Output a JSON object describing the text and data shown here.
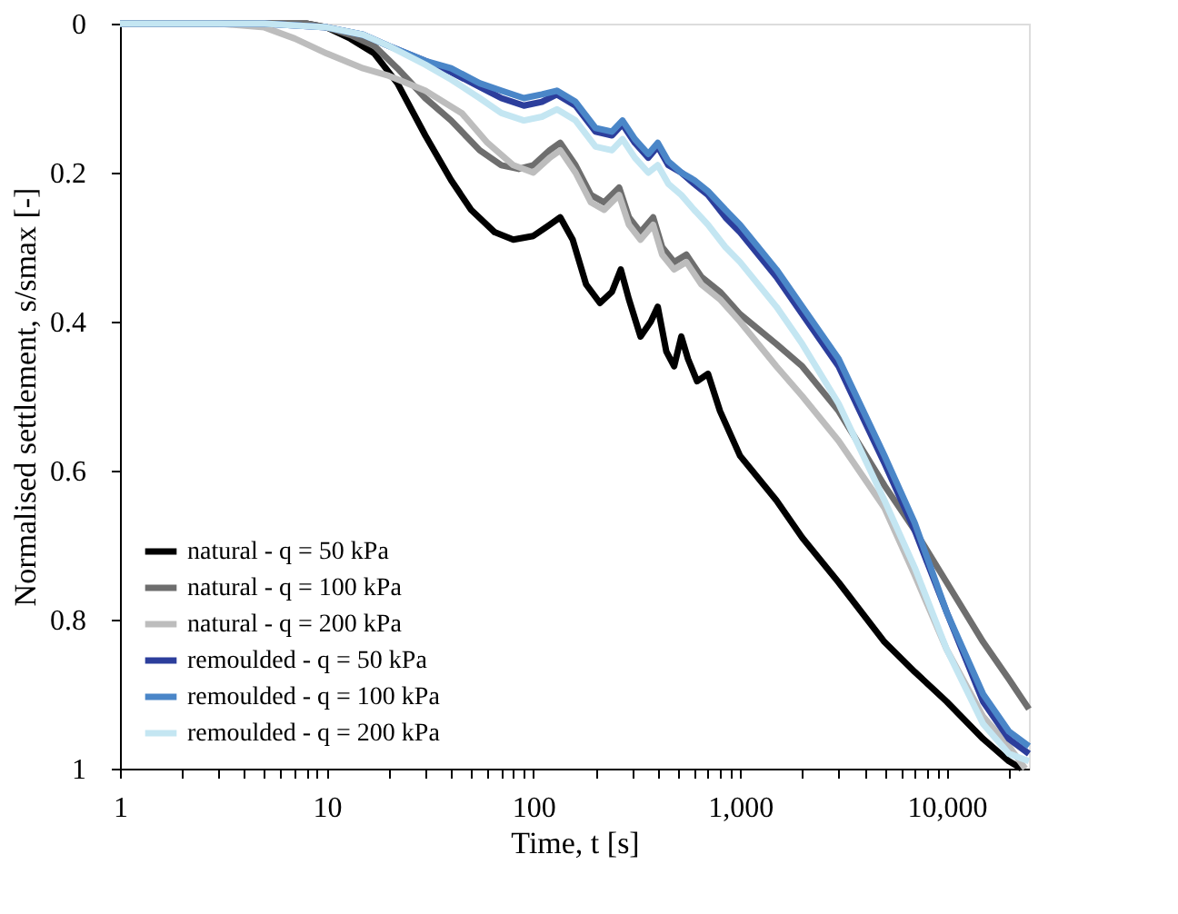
{
  "chart_data": {
    "type": "line",
    "xlabel": "Time, t [s]",
    "ylabel": "Normalised settlement, s/smax [-]",
    "log": "x",
    "grid": false,
    "legend": "bottom left",
    "marker": "none",
    "line_style": "solid",
    "xlim": [
      1,
      25000
    ],
    "xticks": [
      1,
      {
        "value": 2,
        "label": null
      },
      {
        "value": 3,
        "label": null
      },
      {
        "value": 4,
        "label": null
      },
      {
        "value": 5,
        "label": null
      },
      {
        "value": 6,
        "label": null
      },
      {
        "value": 7,
        "label": null
      },
      {
        "value": 8,
        "label": null
      },
      {
        "value": 9,
        "label": null
      },
      10,
      {
        "value": 20,
        "label": null
      },
      {
        "value": 30,
        "label": null
      },
      {
        "value": 40,
        "label": null
      },
      {
        "value": 50,
        "label": null
      },
      {
        "value": 60,
        "label": null
      },
      {
        "value": 70,
        "label": null
      },
      {
        "value": 80,
        "label": null
      },
      {
        "value": 90,
        "label": null
      },
      100,
      {
        "value": 200,
        "label": null
      },
      {
        "value": 300,
        "label": null
      },
      {
        "value": 400,
        "label": null
      },
      {
        "value": 500,
        "label": null
      },
      {
        "value": 600,
        "label": null
      },
      {
        "value": 700,
        "label": null
      },
      {
        "value": 800,
        "label": null
      },
      {
        "value": 900,
        "label": null
      },
      {
        "value": 1000,
        "label": "1,000"
      },
      {
        "value": 2000,
        "label": null
      },
      {
        "value": 3000,
        "label": null
      },
      {
        "value": 4000,
        "label": null
      },
      {
        "value": 5000,
        "label": null
      },
      {
        "value": 6000,
        "label": null
      },
      {
        "value": 7000,
        "label": null
      },
      {
        "value": 8000,
        "label": null
      },
      {
        "value": 9000,
        "label": null
      },
      {
        "value": 10000,
        "label": "10,000"
      },
      {
        "value": 20000,
        "label": null
      }
    ],
    "ylim": [
      1,
      0
    ],
    "yticks": [
      0,
      0.2,
      0.4,
      0.6,
      0.8,
      1
    ],
    "series": [
      {
        "name": "natural - q = 50 kPa",
        "color": "#000000",
        "x": [
          1,
          3,
          6,
          8,
          10,
          13,
          17,
          22,
          30,
          40,
          50,
          65,
          80,
          100,
          120,
          135,
          155,
          180,
          210,
          240,
          265,
          290,
          330,
          370,
          400,
          440,
          480,
          520,
          560,
          620,
          700,
          800,
          1000,
          1500,
          2000,
          3000,
          5000,
          7000,
          10000,
          15000,
          20000,
          23000
        ],
        "values": [
          0,
          0,
          0,
          0,
          0.005,
          0.02,
          0.04,
          0.08,
          0.15,
          0.21,
          0.25,
          0.28,
          0.29,
          0.285,
          0.27,
          0.26,
          0.29,
          0.35,
          0.375,
          0.36,
          0.33,
          0.37,
          0.42,
          0.4,
          0.38,
          0.44,
          0.46,
          0.42,
          0.45,
          0.48,
          0.47,
          0.52,
          0.58,
          0.64,
          0.69,
          0.75,
          0.83,
          0.87,
          0.91,
          0.96,
          0.99,
          1
        ]
      },
      {
        "name": "natural - q = 100 kPa",
        "color": "#6e6e6e",
        "x": [
          1,
          5,
          8,
          10,
          13,
          17,
          22,
          30,
          40,
          55,
          70,
          85,
          100,
          120,
          135,
          160,
          190,
          220,
          260,
          290,
          330,
          380,
          420,
          480,
          550,
          650,
          800,
          1000,
          1500,
          2000,
          3000,
          5000,
          7000,
          10000,
          15000,
          20000,
          25000
        ],
        "values": [
          0,
          0,
          0,
          0.005,
          0.015,
          0.03,
          0.06,
          0.1,
          0.13,
          0.17,
          0.19,
          0.195,
          0.19,
          0.17,
          0.16,
          0.19,
          0.23,
          0.24,
          0.22,
          0.26,
          0.28,
          0.26,
          0.3,
          0.32,
          0.31,
          0.34,
          0.36,
          0.39,
          0.43,
          0.46,
          0.52,
          0.62,
          0.68,
          0.75,
          0.83,
          0.88,
          0.92
        ]
      },
      {
        "name": "natural - q = 200 kPa",
        "color": "#bdbdbd",
        "x": [
          1,
          3,
          5,
          7,
          10,
          15,
          20,
          30,
          45,
          60,
          80,
          100,
          120,
          135,
          160,
          190,
          220,
          260,
          290,
          330,
          380,
          420,
          480,
          550,
          650,
          800,
          1000,
          1500,
          2000,
          3000,
          5000,
          7000,
          10000,
          15000,
          20000,
          24000
        ],
        "values": [
          0,
          0,
          0.005,
          0.02,
          0.04,
          0.06,
          0.07,
          0.09,
          0.12,
          0.16,
          0.19,
          0.2,
          0.18,
          0.17,
          0.2,
          0.24,
          0.25,
          0.23,
          0.27,
          0.29,
          0.27,
          0.31,
          0.33,
          0.32,
          0.35,
          0.37,
          0.4,
          0.46,
          0.5,
          0.56,
          0.65,
          0.74,
          0.84,
          0.93,
          0.97,
          1
        ]
      },
      {
        "name": "remoulded - q = 50 kPa",
        "color": "#2c3e9c",
        "x": [
          1,
          5,
          10,
          15,
          20,
          30,
          40,
          55,
          70,
          90,
          110,
          130,
          160,
          200,
          240,
          270,
          310,
          360,
          400,
          450,
          520,
          600,
          700,
          850,
          1000,
          1500,
          2000,
          3000,
          5000,
          7000,
          10000,
          15000,
          20000,
          25000
        ],
        "values": [
          0,
          0,
          0.005,
          0.015,
          0.03,
          0.05,
          0.065,
          0.085,
          0.1,
          0.11,
          0.105,
          0.095,
          0.11,
          0.145,
          0.15,
          0.135,
          0.16,
          0.18,
          0.165,
          0.19,
          0.2,
          0.215,
          0.23,
          0.26,
          0.28,
          0.34,
          0.39,
          0.46,
          0.59,
          0.68,
          0.79,
          0.91,
          0.96,
          0.98
        ]
      },
      {
        "name": "remoulded - q = 100 kPa",
        "color": "#4a86c8",
        "x": [
          1,
          5,
          10,
          15,
          20,
          30,
          40,
          55,
          70,
          90,
          110,
          130,
          160,
          200,
          240,
          270,
          310,
          360,
          400,
          450,
          520,
          600,
          700,
          850,
          1000,
          1500,
          2000,
          3000,
          5000,
          7000,
          10000,
          15000,
          20000,
          25000
        ],
        "values": [
          0,
          0,
          0.005,
          0.015,
          0.03,
          0.05,
          0.06,
          0.08,
          0.09,
          0.1,
          0.095,
          0.09,
          0.105,
          0.14,
          0.145,
          0.13,
          0.155,
          0.175,
          0.16,
          0.185,
          0.2,
          0.21,
          0.225,
          0.25,
          0.27,
          0.33,
          0.38,
          0.45,
          0.58,
          0.67,
          0.79,
          0.9,
          0.95,
          0.97
        ]
      },
      {
        "name": "remoulded - q = 200 kPa",
        "color": "#c4e6f2",
        "x": [
          1,
          5,
          10,
          15,
          20,
          30,
          40,
          55,
          70,
          90,
          110,
          130,
          160,
          200,
          240,
          270,
          310,
          360,
          400,
          450,
          520,
          600,
          700,
          850,
          1000,
          1500,
          2000,
          3000,
          5000,
          7000,
          10000,
          15000,
          20000,
          25000
        ],
        "values": [
          0,
          0,
          0.005,
          0.015,
          0.03,
          0.055,
          0.075,
          0.1,
          0.12,
          0.13,
          0.125,
          0.115,
          0.13,
          0.165,
          0.17,
          0.155,
          0.18,
          0.2,
          0.19,
          0.215,
          0.23,
          0.25,
          0.27,
          0.3,
          0.32,
          0.38,
          0.43,
          0.51,
          0.64,
          0.73,
          0.84,
          0.94,
          0.98,
          0.99
        ]
      }
    ]
  }
}
